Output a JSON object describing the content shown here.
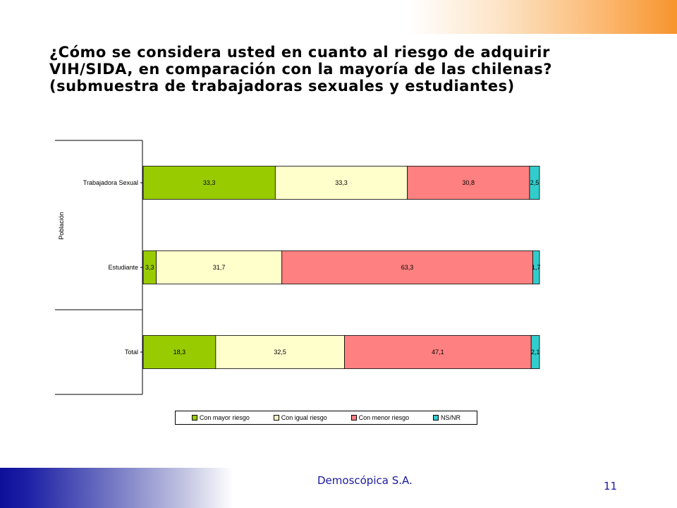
{
  "slide": {
    "title_lines": [
      "¿Cómo se considera usted en cuanto al riesgo de adquirir",
      "VIH/SIDA, en comparación con la mayoría de las chilenas?",
      "(submuestra de trabajadoras sexuales y estudiantes)"
    ],
    "company": "Demoscópica S.A.",
    "page_number": "11"
  },
  "chart_data": {
    "type": "bar",
    "orientation": "horizontal",
    "stacked": true,
    "normalized": true,
    "ylabel": "Población",
    "categories": [
      "Trabajadora Sexual",
      "Estudiante",
      "Total"
    ],
    "series": [
      {
        "name": "Con mayor riesgo",
        "color": "#99cc00",
        "values": [
          33.3,
          3.3,
          18.3
        ],
        "labels": [
          "33,3",
          "3,3",
          "18,3"
        ]
      },
      {
        "name": "Con igual riesgo",
        "color": "#ffffcc",
        "values": [
          33.3,
          31.7,
          32.5
        ],
        "labels": [
          "33,3",
          "31,7",
          "32,5"
        ]
      },
      {
        "name": "Con menor riesgo",
        "color": "#ff8080",
        "values": [
          30.8,
          63.3,
          47.1
        ],
        "labels": [
          "30,8",
          "63,3",
          "47,1"
        ]
      },
      {
        "name": "NS/NR",
        "color": "#33cccc",
        "values": [
          2.5,
          1.7,
          2.1
        ],
        "labels": [
          "2,5",
          "1,7",
          "2,1"
        ]
      }
    ],
    "grid": false,
    "legend_position": "bottom"
  }
}
